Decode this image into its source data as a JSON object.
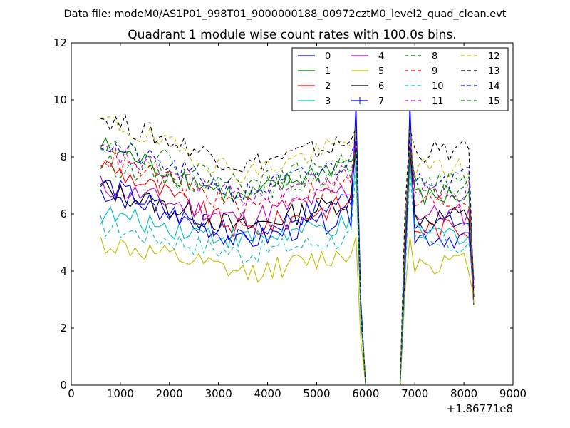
{
  "chart_data": {
    "type": "line",
    "suptitle": "Data file: modeM0/AS1P01_998T01_9000000188_00972cztM0_level2_quad_clean.evt",
    "title": "Quadrant 1 module wise count rates with 100.0s bins.",
    "xlabel": "",
    "ylabel": "",
    "x_offset_label": "+1.86771e8",
    "xlim": [
      0,
      9000
    ],
    "ylim": [
      0,
      12
    ],
    "xticks": [
      0,
      1000,
      2000,
      3000,
      4000,
      5000,
      6000,
      7000,
      8000,
      9000
    ],
    "yticks": [
      0,
      2,
      4,
      6,
      8,
      10,
      12
    ],
    "x": [
      600,
      700,
      800,
      900,
      1000,
      1100,
      1200,
      1300,
      1400,
      1500,
      1600,
      1700,
      1800,
      1900,
      2000,
      2100,
      2200,
      2300,
      2400,
      2500,
      2600,
      2700,
      2800,
      2900,
      3000,
      3100,
      3200,
      3300,
      3400,
      3500,
      3600,
      3700,
      3800,
      3900,
      4000,
      4100,
      4200,
      4300,
      4400,
      4500,
      4600,
      4700,
      4800,
      4900,
      5000,
      5100,
      5200,
      5300,
      5400,
      5500,
      5600,
      5700,
      5800,
      5900,
      6000,
      6100,
      6200,
      6300,
      6400,
      6500,
      6600,
      6700,
      6800,
      6900,
      7000,
      7100,
      7200,
      7300,
      7400,
      7500,
      7600,
      7700,
      7800,
      7900,
      8000,
      8100,
      8200
    ],
    "legend_position": "upper right",
    "series": [
      {
        "name": "0",
        "color": "#0000ff",
        "style": "solid"
      },
      {
        "name": "1",
        "color": "#008000",
        "style": "solid"
      },
      {
        "name": "2",
        "color": "#ff0000",
        "style": "solid"
      },
      {
        "name": "3",
        "color": "#00bfbf",
        "style": "solid"
      },
      {
        "name": "4",
        "color": "#bf00bf",
        "style": "solid"
      },
      {
        "name": "5",
        "color": "#bfbf00",
        "style": "solid"
      },
      {
        "name": "6",
        "color": "#000000",
        "style": "solid"
      },
      {
        "name": "7",
        "color": "#0000ff",
        "style": "solid",
        "marker": "+"
      },
      {
        "name": "8",
        "color": "#008000",
        "style": "dashed"
      },
      {
        "name": "9",
        "color": "#ff0000",
        "style": "dashed"
      },
      {
        "name": "10",
        "color": "#00bfbf",
        "style": "dashed"
      },
      {
        "name": "11",
        "color": "#bf00bf",
        "style": "dashed"
      },
      {
        "name": "12",
        "color": "#bfbf00",
        "style": "dashed"
      },
      {
        "name": "13",
        "color": "#000000",
        "style": "dashed"
      },
      {
        "name": "14",
        "color": "#0000ff",
        "style": "dashed"
      },
      {
        "name": "15",
        "color": "#008000",
        "style": "dashed"
      }
    ],
    "levels": {
      "0": {
        "start": 6.8,
        "mid": 5.2,
        "end": 6.6,
        "post": 5.7,
        "peak": 8.8
      },
      "1": {
        "start": 8.4,
        "mid": 6.5,
        "end": 7.9,
        "post": 6.6,
        "peak": 8.1
      },
      "2": {
        "start": 7.8,
        "mid": 5.4,
        "end": 6.4,
        "post": 5.5,
        "peak": 8.5
      },
      "3": {
        "start": 6.0,
        "mid": 5.1,
        "end": 5.6,
        "post": 5.3,
        "peak": 7.9
      },
      "4": {
        "start": 7.0,
        "mid": 5.8,
        "end": 6.9,
        "post": 6.0,
        "peak": 8.2
      },
      "5": {
        "start": 5.0,
        "mid": 3.9,
        "end": 4.6,
        "post": 4.3,
        "peak": 5.2
      },
      "6": {
        "start": 6.9,
        "mid": 5.5,
        "end": 6.5,
        "post": 5.9,
        "peak": 8.4
      },
      "7": {
        "start": 7.1,
        "mid": 5.0,
        "end": 5.9,
        "post": 5.2,
        "peak": 9.9
      },
      "8": {
        "start": 7.8,
        "mid": 6.8,
        "end": 7.4,
        "post": 6.9,
        "peak": 8.2
      },
      "9": {
        "start": 8.0,
        "mid": 6.2,
        "end": 7.1,
        "post": 6.4,
        "peak": 8.6
      },
      "10": {
        "start": 5.6,
        "mid": 4.6,
        "end": 5.2,
        "post": 4.9,
        "peak": 7.5
      },
      "11": {
        "start": 8.2,
        "mid": 6.6,
        "end": 7.4,
        "post": 6.8,
        "peak": 8.7
      },
      "12": {
        "start": 9.3,
        "mid": 7.4,
        "end": 8.5,
        "post": 7.6,
        "peak": 8.8
      },
      "13": {
        "start": 9.4,
        "mid": 7.7,
        "end": 8.5,
        "post": 8.2,
        "peak": 9.0
      },
      "14": {
        "start": 8.5,
        "mid": 6.7,
        "end": 7.8,
        "post": 7.3,
        "peak": 8.6
      },
      "15": {
        "start": 8.6,
        "mid": 7.0,
        "end": 7.8,
        "post": 7.1,
        "peak": 8.2
      }
    },
    "gap_range": [
      6000,
      6700
    ],
    "gap_value": 0
  }
}
